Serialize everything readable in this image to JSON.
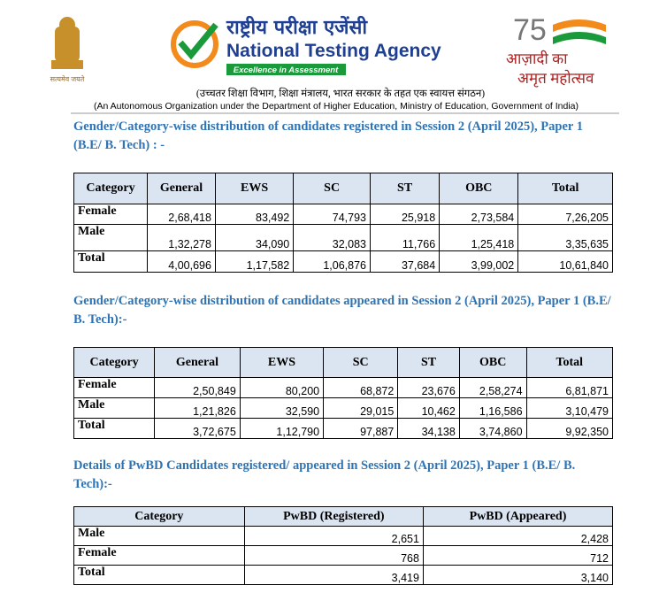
{
  "header": {
    "emblem_motto": "सत्यमेव जयते",
    "hindi_name": "राष्ट्रीय परीक्षा एजेंसी",
    "name": "National Testing Agency",
    "tagline": "Excellence in Assessment",
    "azadi_number": "75",
    "azadi_line1": "आज़ादी का",
    "azadi_line2": "अमृत महोत्सव",
    "hindi_subtitle": "(उच्चतर शिक्षा विभाग, शिक्षा मंत्रालय, भारत सरकार के तहत एक स्वायत्त संगठन)",
    "subtitle": "(An Autonomous Organization under the Department of Higher Education, Ministry of Education, Government of India)"
  },
  "sections": [
    {
      "heading": "Gender/Category-wise distribution of candidates registered in Session 2 (April 2025), Paper 1 (B.E/ B. Tech) : -",
      "table": {
        "columns": [
          "Category",
          "General",
          "EWS",
          "SC",
          "ST",
          "OBC",
          "Total"
        ],
        "rows": [
          [
            "Female",
            "2,68,418",
            "83,492",
            "74,793",
            "25,918",
            "2,73,584",
            "7,26,205"
          ],
          [
            "Male",
            "1,32,278",
            "34,090",
            "32,083",
            "11,766",
            "1,25,418",
            "3,35,635"
          ],
          [
            "Total",
            "4,00,696",
            "1,17,582",
            "1,06,876",
            "37,684",
            "3,99,002",
            "10,61,840"
          ]
        ]
      }
    },
    {
      "heading": "Gender/Category-wise distribution of candidates appeared in Session 2 (April 2025), Paper 1 (B.E/ B. Tech):-",
      "table": {
        "columns": [
          "Category",
          "General",
          "EWS",
          "SC",
          "ST",
          "OBC",
          "Total"
        ],
        "rows": [
          [
            "Female",
            "2,50,849",
            "80,200",
            "68,872",
            "23,676",
            "2,58,274",
            "6,81,871"
          ],
          [
            "Male",
            "1,21,826",
            "32,590",
            "29,015",
            "10,462",
            "1,16,586",
            "3,10,479"
          ],
          [
            "Total",
            "3,72,675",
            "1,12,790",
            "97,887",
            "34,138",
            "3,74,860",
            "9,92,350"
          ]
        ]
      }
    },
    {
      "heading": "Details of PwBD Candidates registered/ appeared  in Session 2 (April 2025), Paper 1 (B.E/ B. Tech):-",
      "table": {
        "columns": [
          "Category",
          "PwBD (Registered)",
          "PwBD (Appeared)"
        ],
        "rows": [
          [
            "Male",
            "2,651",
            "2,428"
          ],
          [
            "Female",
            "768",
            "712"
          ],
          [
            "Total",
            "3,419",
            "3,140"
          ]
        ]
      }
    }
  ]
}
